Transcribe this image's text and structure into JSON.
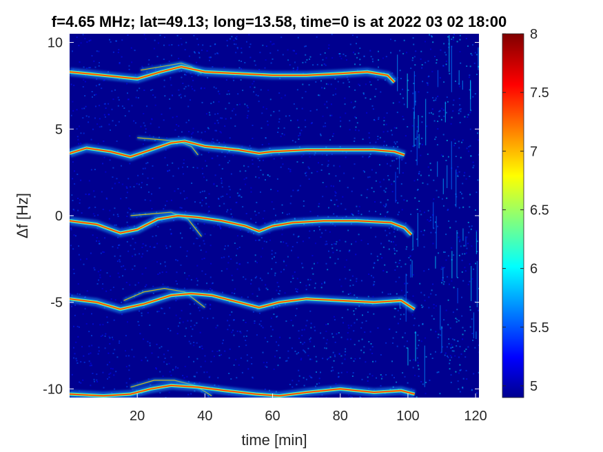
{
  "chart_data": {
    "type": "heatmap",
    "title": "f=4.65 MHz;  lat=49.13; long=13.58, time=0 is at 2022 03 02 18:00",
    "xlabel": "time [min]",
    "ylabel": "Δf [Hz]",
    "xlim": [
      0,
      121
    ],
    "ylim": [
      -10.5,
      10.5
    ],
    "x_ticks": [
      "20",
      "40",
      "60",
      "80",
      "100",
      "120"
    ],
    "y_ticks": [
      "10",
      "5",
      "0",
      "-5",
      "-10"
    ],
    "colorbar": {
      "colormap": "jet",
      "range": [
        4.9,
        8.0
      ],
      "ticks": [
        "8",
        "7.5",
        "7",
        "6.5",
        "6",
        "5.5",
        "5"
      ]
    },
    "background_color": "#00008f",
    "traces": [
      {
        "base": 8.2,
        "end_time": 96,
        "points": [
          [
            0,
            8.3
          ],
          [
            10,
            8.1
          ],
          [
            20,
            7.9
          ],
          [
            27,
            8.3
          ],
          [
            33,
            8.6
          ],
          [
            40,
            8.3
          ],
          [
            50,
            8.2
          ],
          [
            60,
            8.1
          ],
          [
            70,
            8.1
          ],
          [
            80,
            8.2
          ],
          [
            88,
            8.3
          ],
          [
            94,
            8.1
          ],
          [
            96,
            7.7
          ]
        ]
      },
      {
        "base": 3.8,
        "end_time": 99,
        "points": [
          [
            0,
            3.6
          ],
          [
            5,
            3.9
          ],
          [
            12,
            3.7
          ],
          [
            18,
            3.4
          ],
          [
            24,
            3.8
          ],
          [
            30,
            4.2
          ],
          [
            34,
            4.3
          ],
          [
            40,
            4.0
          ],
          [
            50,
            3.8
          ],
          [
            56,
            3.6
          ],
          [
            60,
            3.7
          ],
          [
            70,
            3.8
          ],
          [
            80,
            3.8
          ],
          [
            90,
            3.8
          ],
          [
            96,
            3.7
          ],
          [
            99,
            3.5
          ]
        ]
      },
      {
        "base": -0.3,
        "end_time": 101,
        "points": [
          [
            0,
            -0.3
          ],
          [
            8,
            -0.5
          ],
          [
            15,
            -1.0
          ],
          [
            20,
            -0.8
          ],
          [
            26,
            -0.2
          ],
          [
            32,
            0.0
          ],
          [
            38,
            -0.1
          ],
          [
            45,
            -0.3
          ],
          [
            52,
            -0.6
          ],
          [
            56,
            -0.9
          ],
          [
            60,
            -0.6
          ],
          [
            66,
            -0.4
          ],
          [
            75,
            -0.3
          ],
          [
            85,
            -0.3
          ],
          [
            95,
            -0.4
          ],
          [
            99,
            -0.7
          ],
          [
            101,
            -1.1
          ]
        ]
      },
      {
        "base": -4.8,
        "end_time": 102,
        "points": [
          [
            0,
            -4.8
          ],
          [
            8,
            -5.0
          ],
          [
            15,
            -5.4
          ],
          [
            22,
            -5.1
          ],
          [
            30,
            -4.6
          ],
          [
            36,
            -4.5
          ],
          [
            42,
            -4.6
          ],
          [
            50,
            -5.0
          ],
          [
            56,
            -5.3
          ],
          [
            62,
            -5.0
          ],
          [
            70,
            -4.8
          ],
          [
            80,
            -4.9
          ],
          [
            90,
            -5.0
          ],
          [
            98,
            -4.9
          ],
          [
            102,
            -5.4
          ]
        ]
      },
      {
        "base": -10.2,
        "end_time": 102,
        "points": [
          [
            0,
            -10.3
          ],
          [
            10,
            -10.4
          ],
          [
            18,
            -10.3
          ],
          [
            24,
            -10.0
          ],
          [
            30,
            -9.8
          ],
          [
            38,
            -9.9
          ],
          [
            46,
            -10.1
          ],
          [
            55,
            -10.3
          ],
          [
            62,
            -10.4
          ],
          [
            70,
            -10.2
          ],
          [
            80,
            -10.0
          ],
          [
            90,
            -10.2
          ],
          [
            98,
            -10.1
          ],
          [
            102,
            -10.3
          ]
        ]
      }
    ],
    "secondary_traces": [
      {
        "points": [
          [
            21,
            8.4
          ],
          [
            27,
            8.6
          ],
          [
            33,
            8.8
          ],
          [
            36,
            8.6
          ],
          [
            39,
            8.2
          ]
        ]
      },
      {
        "points": [
          [
            20,
            4.5
          ],
          [
            26,
            4.4
          ],
          [
            32,
            4.3
          ],
          [
            36,
            4.0
          ],
          [
            38,
            3.5
          ]
        ]
      },
      {
        "points": [
          [
            18,
            0.0
          ],
          [
            24,
            0.1
          ],
          [
            30,
            0.2
          ],
          [
            35,
            -0.2
          ],
          [
            39,
            -1.2
          ]
        ]
      },
      {
        "points": [
          [
            16,
            -4.9
          ],
          [
            22,
            -4.4
          ],
          [
            28,
            -4.2
          ],
          [
            34,
            -4.4
          ],
          [
            40,
            -5.3
          ]
        ]
      },
      {
        "points": [
          [
            18,
            -9.9
          ],
          [
            25,
            -9.5
          ],
          [
            31,
            -9.5
          ],
          [
            37,
            -9.8
          ],
          [
            42,
            -10.4
          ]
        ]
      }
    ]
  }
}
